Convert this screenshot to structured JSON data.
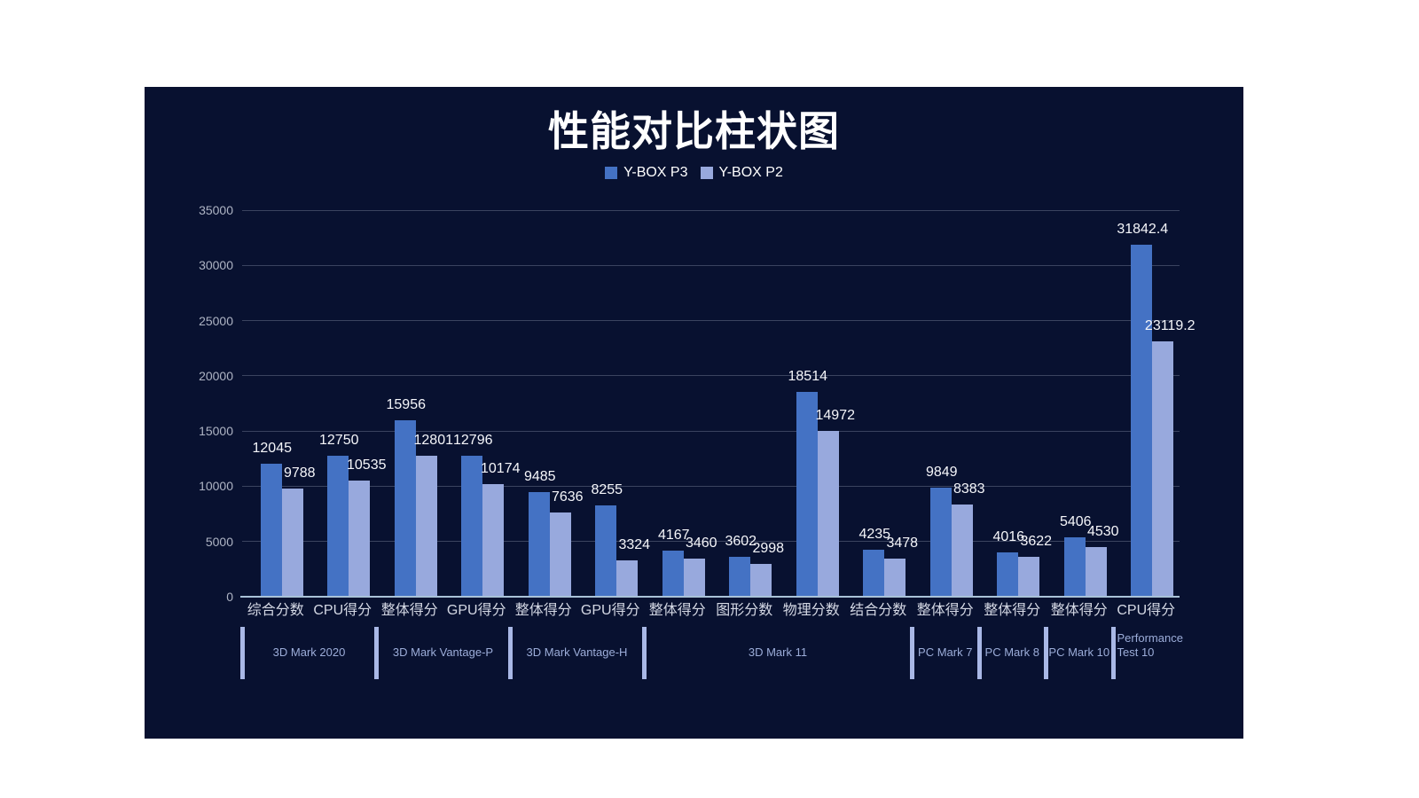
{
  "title": "性能对比柱状图",
  "legend": {
    "items": [
      {
        "label": "Y-BOX P3",
        "color": "#4472c4"
      },
      {
        "label": "Y-BOX P2",
        "color": "#98a9dd"
      }
    ]
  },
  "chart_data": {
    "type": "bar",
    "title": "性能对比柱状图",
    "categories": [
      "综合分数",
      "CPU得分",
      "整体得分",
      "GPU得分",
      "整体得分",
      "GPU得分",
      "整体得分",
      "图形分数",
      "物理分数",
      "结合分数",
      "整体得分",
      "整体得分",
      "整体得分",
      "CPU得分"
    ],
    "category_groups": [
      {
        "label": "3D Mark 2020",
        "span": 2
      },
      {
        "label": "3D Mark Vantage-P",
        "span": 2
      },
      {
        "label": "3D Mark Vantage-H",
        "span": 2
      },
      {
        "label": "3D Mark 11",
        "span": 4
      },
      {
        "label": "PC Mark 7",
        "span": 1
      },
      {
        "label": "PC Mark 8",
        "span": 1
      },
      {
        "label": "PC Mark 10",
        "span": 1
      },
      {
        "label": "Performance Test 10",
        "span": 1,
        "wrap": true
      }
    ],
    "series": [
      {
        "name": "Y-BOX P3",
        "color": "#4472c4",
        "values": [
          12045,
          12750,
          15956,
          12796,
          9485,
          8255,
          4167,
          3602,
          18514,
          4235,
          9849,
          4016,
          5406,
          31842.4
        ]
      },
      {
        "name": "Y-BOX P2",
        "color": "#98a9dd",
        "values": [
          9788,
          10535,
          12801,
          10174,
          7636,
          3324,
          3460,
          2998,
          14972,
          3478,
          8383,
          3622,
          4530,
          23119.2
        ]
      }
    ],
    "y_ticks": [
      0,
      5000,
      10000,
      15000,
      20000,
      25000,
      30000,
      35000
    ],
    "ylim": [
      0,
      35000
    ],
    "grid": true,
    "legend_position": "top",
    "colors": {
      "canvas_background": "#081130",
      "axis_line": "#a9c2d8",
      "gridline": "rgba(190,198,218,0.28)",
      "tick_label": "#aeb4c4",
      "value_label": "#f5f6fa",
      "category_label": "#d4d8e4",
      "group_label": "#9cadd9",
      "group_separator": "#a9b8e6",
      "title": "#ffffff",
      "legend_text": "#ffffff"
    }
  }
}
